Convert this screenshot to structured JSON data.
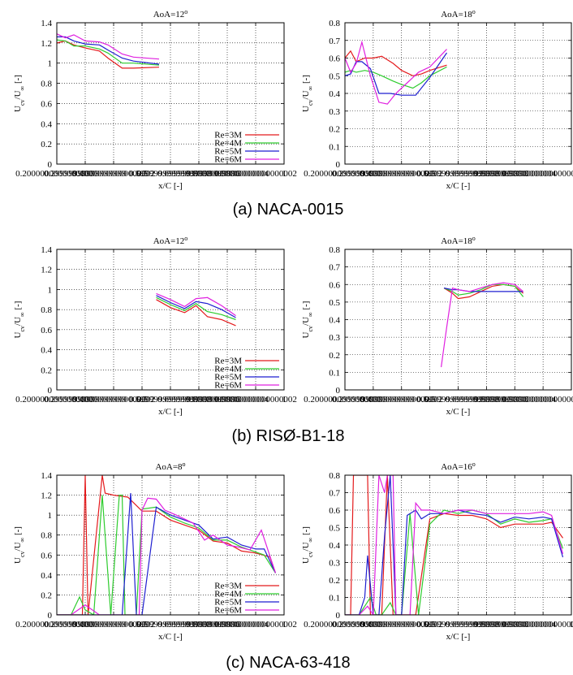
{
  "colors": {
    "Re=3M": "#e41a1c",
    "Re=4M": "#2ecc2e",
    "Re=5M": "#1f1fd0",
    "Re=6M": "#e020e0"
  },
  "captions": [
    "(a) NACA-0015",
    "(b) RISØ-B1-18",
    "(c) NACA-63-418"
  ],
  "chart_data": [
    {
      "type": "line",
      "title": "AoA=12°",
      "xlabel": "x/C [-]",
      "ylabel": "U_cv/U_∞ [-]",
      "xlim": [
        0.2,
        1.0
      ],
      "ylim": [
        0,
        1.4
      ],
      "xticks": [
        0.2,
        0.3,
        0.4,
        0.5,
        0.6,
        0.7,
        0.8,
        0.9,
        1.0
      ],
      "yticks": [
        0,
        0.2,
        0.4,
        0.6,
        0.8,
        1.0,
        1.2,
        1.4
      ],
      "grid": true,
      "legend": "bottom-right",
      "series": [
        {
          "name": "Re=3M",
          "x": [
            0.2,
            0.23,
            0.26,
            0.3,
            0.35,
            0.38,
            0.43,
            0.47,
            0.56
          ],
          "y": [
            1.2,
            1.22,
            1.18,
            1.15,
            1.12,
            1.05,
            0.95,
            0.95,
            0.96
          ]
        },
        {
          "name": "Re=4M",
          "x": [
            0.2,
            0.23,
            0.26,
            0.3,
            0.35,
            0.38,
            0.43,
            0.47,
            0.56
          ],
          "y": [
            1.23,
            1.22,
            1.17,
            1.17,
            1.14,
            1.1,
            1.0,
            1.0,
            0.98
          ]
        },
        {
          "name": "Re=5M",
          "x": [
            0.2,
            0.23,
            0.26,
            0.3,
            0.35,
            0.38,
            0.43,
            0.47,
            0.56
          ],
          "y": [
            1.26,
            1.26,
            1.22,
            1.19,
            1.18,
            1.13,
            1.05,
            1.02,
            0.99
          ]
        },
        {
          "name": "Re=6M",
          "x": [
            0.2,
            0.23,
            0.26,
            0.3,
            0.35,
            0.38,
            0.43,
            0.47,
            0.56
          ],
          "y": [
            1.29,
            1.25,
            1.28,
            1.22,
            1.21,
            1.18,
            1.09,
            1.06,
            1.04
          ]
        }
      ]
    },
    {
      "type": "line",
      "title": "AoA=18°",
      "xlabel": "x/C [-]",
      "ylabel": "U_cv/U_∞ [-]",
      "xlim": [
        0.2,
        1.0
      ],
      "ylim": [
        0,
        0.8
      ],
      "xticks": [
        0.2,
        0.3,
        0.4,
        0.5,
        0.6,
        0.7,
        0.8,
        0.9
      ],
      "yticks": [
        0,
        0.1,
        0.2,
        0.3,
        0.4,
        0.5,
        0.6,
        0.7,
        0.8
      ],
      "grid": true,
      "legend": "",
      "series": [
        {
          "name": "Re=3M",
          "x": [
            0.2,
            0.22,
            0.24,
            0.27,
            0.3,
            0.33,
            0.37,
            0.4,
            0.44,
            0.47,
            0.5,
            0.56
          ],
          "y": [
            0.6,
            0.64,
            0.58,
            0.6,
            0.6,
            0.61,
            0.57,
            0.53,
            0.5,
            0.51,
            0.53,
            0.56
          ]
        },
        {
          "name": "Re=4M",
          "x": [
            0.2,
            0.22,
            0.24,
            0.27,
            0.3,
            0.33,
            0.37,
            0.4,
            0.44,
            0.47,
            0.5,
            0.56
          ],
          "y": [
            0.52,
            0.53,
            0.52,
            0.53,
            0.52,
            0.5,
            0.47,
            0.45,
            0.43,
            0.46,
            0.5,
            0.55
          ]
        },
        {
          "name": "Re=5M",
          "x": [
            0.2,
            0.22,
            0.24,
            0.26,
            0.29,
            0.32,
            0.36,
            0.4,
            0.45,
            0.5,
            0.56
          ],
          "y": [
            0.5,
            0.51,
            0.58,
            0.58,
            0.54,
            0.4,
            0.4,
            0.39,
            0.39,
            0.49,
            0.63
          ]
        },
        {
          "name": "Re=6M",
          "x": [
            0.2,
            0.22,
            0.24,
            0.26,
            0.29,
            0.32,
            0.35,
            0.38,
            0.42,
            0.46,
            0.5,
            0.56
          ],
          "y": [
            0.6,
            0.52,
            0.57,
            0.69,
            0.5,
            0.35,
            0.34,
            0.4,
            0.46,
            0.52,
            0.55,
            0.65
          ]
        }
      ]
    },
    {
      "type": "line",
      "title": "AoA=12°",
      "xlabel": "x/C [-]",
      "ylabel": "U_cv/U_∞ [-]",
      "xlim": [
        0.2,
        1.0
      ],
      "ylim": [
        0,
        1.4
      ],
      "xticks": [
        0.2,
        0.3,
        0.4,
        0.5,
        0.6,
        0.7,
        0.8,
        0.9,
        1.0
      ],
      "yticks": [
        0,
        0.2,
        0.4,
        0.6,
        0.8,
        1.0,
        1.2,
        1.4
      ],
      "grid": true,
      "legend": "bottom-right",
      "series": [
        {
          "name": "Re=3M",
          "x": [
            0.55,
            0.6,
            0.65,
            0.69,
            0.73,
            0.78,
            0.83
          ],
          "y": [
            0.9,
            0.82,
            0.77,
            0.84,
            0.73,
            0.7,
            0.64
          ]
        },
        {
          "name": "Re=4M",
          "x": [
            0.55,
            0.6,
            0.65,
            0.69,
            0.73,
            0.78,
            0.83
          ],
          "y": [
            0.92,
            0.85,
            0.79,
            0.86,
            0.78,
            0.75,
            0.7
          ]
        },
        {
          "name": "Re=5M",
          "x": [
            0.55,
            0.6,
            0.65,
            0.69,
            0.73,
            0.78,
            0.83
          ],
          "y": [
            0.94,
            0.87,
            0.81,
            0.88,
            0.86,
            0.8,
            0.72
          ]
        },
        {
          "name": "Re=6M",
          "x": [
            0.55,
            0.6,
            0.65,
            0.69,
            0.73,
            0.78,
            0.83
          ],
          "y": [
            0.96,
            0.9,
            0.83,
            0.91,
            0.92,
            0.84,
            0.74
          ]
        }
      ]
    },
    {
      "type": "line",
      "title": "AoA=18°",
      "xlabel": "x/C [-]",
      "ylabel": "U_cv/U_∞ [-]",
      "xlim": [
        0.2,
        1.0
      ],
      "ylim": [
        0,
        0.8
      ],
      "xticks": [
        0.2,
        0.3,
        0.4,
        0.5,
        0.6,
        0.7,
        0.8,
        0.9
      ],
      "yticks": [
        0,
        0.1,
        0.2,
        0.3,
        0.4,
        0.5,
        0.6,
        0.7,
        0.8
      ],
      "grid": true,
      "legend": "",
      "series": [
        {
          "name": "Re=3M",
          "x": [
            0.55,
            0.58,
            0.6,
            0.64,
            0.68,
            0.72,
            0.76,
            0.8,
            0.83
          ],
          "y": [
            0.58,
            0.55,
            0.52,
            0.53,
            0.56,
            0.59,
            0.6,
            0.59,
            0.55
          ]
        },
        {
          "name": "Re=4M",
          "x": [
            0.55,
            0.58,
            0.6,
            0.64,
            0.68,
            0.72,
            0.76,
            0.8,
            0.83
          ],
          "y": [
            0.58,
            0.56,
            0.54,
            0.55,
            0.57,
            0.6,
            0.6,
            0.59,
            0.53
          ]
        },
        {
          "name": "Re=5M",
          "x": [
            0.55,
            0.58,
            0.6,
            0.64,
            0.68,
            0.72,
            0.76,
            0.8,
            0.83
          ],
          "y": [
            0.58,
            0.57,
            0.57,
            0.56,
            0.56,
            0.56,
            0.56,
            0.56,
            0.56
          ]
        },
        {
          "name": "Re=6M",
          "x": [
            0.54,
            0.56,
            0.58,
            0.6,
            0.64,
            0.68,
            0.72,
            0.76,
            0.8,
            0.83
          ],
          "y": [
            0.13,
            0.36,
            0.58,
            0.57,
            0.56,
            0.58,
            0.6,
            0.61,
            0.6,
            0.56
          ]
        }
      ]
    },
    {
      "type": "line",
      "title": "AoA=8°",
      "xlabel": "x/C [-]",
      "ylabel": "U_cv/U_∞ [-]",
      "xlim": [
        0.2,
        1.0
      ],
      "ylim": [
        0,
        1.4
      ],
      "xticks": [
        0.2,
        0.3,
        0.4,
        0.5,
        0.6,
        0.7,
        0.8,
        0.9,
        1.0
      ],
      "yticks": [
        0,
        0.2,
        0.4,
        0.6,
        0.8,
        1.0,
        1.2,
        1.4
      ],
      "grid": true,
      "legend": "bottom-right",
      "series": [
        {
          "name": "Re=3M",
          "x": [
            0.2,
            0.25,
            0.29,
            0.3,
            0.31,
            0.36,
            0.37,
            0.4,
            0.45,
            0.5,
            0.55,
            0.6,
            0.65,
            0.7,
            0.75,
            0.8,
            0.85,
            0.9,
            0.95,
            0.97
          ],
          "y": [
            0.0,
            0.0,
            0.0,
            1.4,
            0.0,
            1.4,
            1.22,
            1.2,
            1.18,
            1.04,
            1.04,
            0.95,
            0.9,
            0.85,
            0.74,
            0.72,
            0.64,
            0.62,
            0.58,
            0.42
          ]
        },
        {
          "name": "Re=4M",
          "x": [
            0.2,
            0.25,
            0.28,
            0.3,
            0.33,
            0.36,
            0.39,
            0.42,
            0.43,
            0.44,
            0.48,
            0.5,
            0.55,
            0.6,
            0.65,
            0.7,
            0.75,
            0.8,
            0.85,
            0.9,
            0.93,
            0.97
          ],
          "y": [
            0.0,
            0.0,
            0.18,
            0.05,
            0.0,
            1.2,
            0.0,
            1.2,
            1.2,
            0.0,
            0.0,
            1.06,
            1.08,
            0.98,
            0.92,
            0.87,
            0.75,
            0.75,
            0.68,
            0.63,
            0.6,
            0.42
          ]
        },
        {
          "name": "Re=5M",
          "x": [
            0.2,
            0.25,
            0.3,
            0.35,
            0.4,
            0.43,
            0.46,
            0.48,
            0.5,
            0.55,
            0.6,
            0.65,
            0.7,
            0.75,
            0.8,
            0.85,
            0.9,
            0.93,
            0.97
          ],
          "y": [
            0.0,
            0.0,
            0.0,
            0.0,
            0.0,
            0.0,
            1.22,
            0.0,
            0.0,
            1.08,
            1.0,
            0.95,
            0.9,
            0.76,
            0.78,
            0.7,
            0.66,
            0.66,
            0.42
          ]
        },
        {
          "name": "Re=6M",
          "x": [
            0.2,
            0.25,
            0.3,
            0.35,
            0.4,
            0.45,
            0.49,
            0.5,
            0.52,
            0.55,
            0.58,
            0.62,
            0.68,
            0.72,
            0.75,
            0.8,
            0.84,
            0.88,
            0.92,
            0.97
          ],
          "y": [
            0.0,
            0.0,
            0.1,
            0.0,
            0.0,
            0.0,
            0.0,
            1.05,
            1.17,
            1.16,
            1.05,
            1.0,
            0.92,
            0.75,
            0.8,
            0.7,
            0.68,
            0.65,
            0.85,
            0.42
          ]
        }
      ]
    },
    {
      "type": "line",
      "title": "AoA=16°",
      "xlabel": "x/C [-]",
      "ylabel": "U_cv/U_∞ [-]",
      "xlim": [
        0.2,
        1.0
      ],
      "ylim": [
        0,
        0.8
      ],
      "xticks": [
        0.2,
        0.3,
        0.4,
        0.5,
        0.6,
        0.7,
        0.8,
        0.9,
        1.0
      ],
      "yticks": [
        0,
        0.1,
        0.2,
        0.3,
        0.4,
        0.5,
        0.6,
        0.7,
        0.8
      ],
      "grid": true,
      "legend": "",
      "series": [
        {
          "name": "Re=3M",
          "x": [
            0.2,
            0.22,
            0.23,
            0.28,
            0.29,
            0.33,
            0.35,
            0.37,
            0.4,
            0.45,
            0.5,
            0.55,
            0.6,
            0.65,
            0.7,
            0.75,
            0.8,
            0.85,
            0.9,
            0.93,
            0.97
          ],
          "y": [
            0.0,
            0.0,
            0.8,
            0.8,
            0.0,
            0.0,
            0.8,
            0.0,
            0.0,
            0.0,
            0.55,
            0.58,
            0.57,
            0.57,
            0.55,
            0.5,
            0.52,
            0.52,
            0.52,
            0.53,
            0.44
          ]
        },
        {
          "name": "Re=4M",
          "x": [
            0.2,
            0.25,
            0.27,
            0.29,
            0.31,
            0.33,
            0.36,
            0.38,
            0.4,
            0.43,
            0.46,
            0.5,
            0.55,
            0.6,
            0.65,
            0.7,
            0.75,
            0.8,
            0.85,
            0.9,
            0.93,
            0.97
          ],
          "y": [
            0.0,
            0.0,
            0.05,
            0.1,
            0.0,
            0.0,
            0.07,
            0.0,
            0.0,
            0.58,
            0.0,
            0.52,
            0.6,
            0.58,
            0.6,
            0.58,
            0.52,
            0.55,
            0.53,
            0.54,
            0.55,
            0.38
          ]
        },
        {
          "name": "Re=5M",
          "x": [
            0.2,
            0.25,
            0.27,
            0.28,
            0.3,
            0.32,
            0.34,
            0.36,
            0.38,
            0.4,
            0.42,
            0.45,
            0.47,
            0.5,
            0.55,
            0.6,
            0.65,
            0.7,
            0.75,
            0.8,
            0.85,
            0.9,
            0.93,
            0.97
          ],
          "y": [
            0.0,
            0.0,
            0.1,
            0.34,
            0.0,
            0.0,
            0.45,
            0.8,
            0.0,
            0.0,
            0.57,
            0.6,
            0.55,
            0.58,
            0.58,
            0.6,
            0.58,
            0.57,
            0.53,
            0.56,
            0.55,
            0.56,
            0.55,
            0.33
          ]
        },
        {
          "name": "Re=6M",
          "x": [
            0.2,
            0.25,
            0.28,
            0.3,
            0.32,
            0.34,
            0.35,
            0.37,
            0.38,
            0.4,
            0.43,
            0.45,
            0.47,
            0.5,
            0.55,
            0.6,
            0.65,
            0.7,
            0.75,
            0.8,
            0.85,
            0.9,
            0.93,
            0.97
          ],
          "y": [
            0.0,
            0.0,
            0.05,
            0.0,
            0.8,
            0.7,
            0.8,
            0.8,
            0.0,
            0.0,
            0.0,
            0.64,
            0.6,
            0.6,
            0.58,
            0.6,
            0.6,
            0.58,
            0.58,
            0.58,
            0.58,
            0.59,
            0.57,
            0.35
          ]
        }
      ]
    }
  ]
}
